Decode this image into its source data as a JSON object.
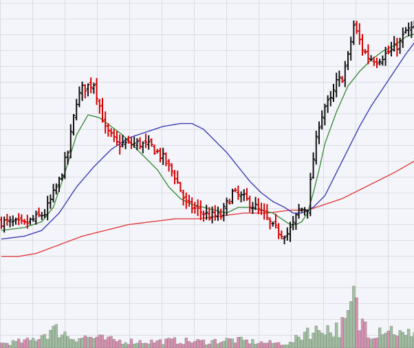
{
  "chart_data": {
    "type": "ohlc",
    "title": "",
    "xlabel": "",
    "ylabel": "",
    "grid": true,
    "legend": "none",
    "ylim": [
      0,
      100
    ],
    "volume_ylim": [
      0,
      100
    ],
    "colors": {
      "background": "#f4f5fa",
      "grid": "#d4d5dc",
      "up_bar": "#111111",
      "down_bar": "#d40000",
      "ma_fast": "#3c8c3c",
      "ma_mid": "#3c3cb4",
      "ma_slow": "#e03c3c",
      "volume_up": "#9fbf9f",
      "volume_down": "#d98fb0",
      "volume_edge": "#7a7a7a"
    },
    "anchors": {
      "close": [
        [
          0,
          28
        ],
        [
          8,
          27
        ],
        [
          15,
          31
        ],
        [
          20,
          42
        ],
        [
          23,
          52
        ],
        [
          26,
          70
        ],
        [
          28,
          74
        ],
        [
          32,
          76
        ],
        [
          36,
          60
        ],
        [
          40,
          55
        ],
        [
          44,
          55
        ],
        [
          48,
          55
        ],
        [
          52,
          54
        ],
        [
          56,
          50
        ],
        [
          60,
          44
        ],
        [
          64,
          34
        ],
        [
          68,
          32
        ],
        [
          72,
          30
        ],
        [
          76,
          30
        ],
        [
          80,
          38
        ],
        [
          84,
          36
        ],
        [
          88,
          33
        ],
        [
          91,
          30
        ],
        [
          94,
          26
        ],
        [
          97,
          24
        ],
        [
          99,
          24
        ],
        [
          101,
          27
        ],
        [
          103,
          32
        ],
        [
          106,
          33
        ],
        [
          108,
          50
        ],
        [
          110,
          62
        ],
        [
          112,
          68
        ],
        [
          114,
          70
        ],
        [
          116,
          76
        ],
        [
          118,
          78
        ],
        [
          120,
          85
        ],
        [
          122,
          96
        ],
        [
          125,
          88
        ],
        [
          127,
          85
        ],
        [
          130,
          84
        ],
        [
          133,
          86
        ],
        [
          136,
          88
        ],
        [
          138,
          90
        ],
        [
          140,
          94
        ],
        [
          143,
          95
        ]
      ],
      "sma_fast": [
        [
          0,
          25
        ],
        [
          8,
          26
        ],
        [
          14,
          28
        ],
        [
          18,
          33
        ],
        [
          22,
          45
        ],
        [
          26,
          58
        ],
        [
          30,
          65
        ],
        [
          34,
          64
        ],
        [
          38,
          61
        ],
        [
          42,
          58
        ],
        [
          46,
          54
        ],
        [
          50,
          50
        ],
        [
          54,
          46
        ],
        [
          58,
          40
        ],
        [
          62,
          36
        ],
        [
          66,
          34
        ],
        [
          70,
          33
        ],
        [
          74,
          32
        ],
        [
          78,
          31
        ],
        [
          82,
          33
        ],
        [
          86,
          33
        ],
        [
          90,
          32
        ],
        [
          94,
          31
        ],
        [
          97,
          29
        ],
        [
          100,
          27
        ],
        [
          102,
          27
        ],
        [
          104,
          28
        ],
        [
          106,
          31
        ],
        [
          108,
          38
        ],
        [
          110,
          46
        ],
        [
          112,
          55
        ],
        [
          116,
          66
        ],
        [
          120,
          75
        ],
        [
          124,
          80
        ],
        [
          128,
          84
        ],
        [
          132,
          87
        ],
        [
          136,
          89
        ],
        [
          140,
          92
        ],
        [
          143,
          93
        ]
      ],
      "sma_mid": [
        [
          0,
          22
        ],
        [
          8,
          23
        ],
        [
          14,
          25
        ],
        [
          20,
          31
        ],
        [
          26,
          40
        ],
        [
          32,
          47
        ],
        [
          38,
          53
        ],
        [
          44,
          57
        ],
        [
          50,
          59
        ],
        [
          56,
          61
        ],
        [
          62,
          62
        ],
        [
          66,
          62
        ],
        [
          70,
          60
        ],
        [
          74,
          56
        ],
        [
          78,
          52
        ],
        [
          82,
          47
        ],
        [
          86,
          42
        ],
        [
          90,
          38
        ],
        [
          94,
          35
        ],
        [
          98,
          33
        ],
        [
          101,
          31
        ],
        [
          104,
          31
        ],
        [
          108,
          33
        ],
        [
          112,
          37
        ],
        [
          116,
          45
        ],
        [
          120,
          53
        ],
        [
          124,
          61
        ],
        [
          128,
          68
        ],
        [
          132,
          74
        ],
        [
          136,
          80
        ],
        [
          140,
          86
        ],
        [
          143,
          90
        ]
      ],
      "sma_slow": [
        [
          0,
          16
        ],
        [
          6,
          16
        ],
        [
          12,
          17
        ],
        [
          20,
          20
        ],
        [
          28,
          23
        ],
        [
          36,
          25
        ],
        [
          44,
          27
        ],
        [
          52,
          28
        ],
        [
          60,
          29
        ],
        [
          68,
          29
        ],
        [
          76,
          30
        ],
        [
          84,
          31
        ],
        [
          92,
          31
        ],
        [
          100,
          32
        ],
        [
          106,
          32
        ],
        [
          112,
          34
        ],
        [
          118,
          36
        ],
        [
          124,
          39
        ],
        [
          130,
          42
        ],
        [
          136,
          45
        ],
        [
          143,
          49
        ]
      ]
    },
    "volume_anchors": [
      [
        0,
        5
      ],
      [
        10,
        8
      ],
      [
        16,
        18
      ],
      [
        20,
        20
      ],
      [
        24,
        12
      ],
      [
        30,
        12
      ],
      [
        40,
        8
      ],
      [
        50,
        7
      ],
      [
        60,
        8
      ],
      [
        70,
        7
      ],
      [
        80,
        9
      ],
      [
        90,
        6
      ],
      [
        100,
        5
      ],
      [
        104,
        14
      ],
      [
        106,
        22
      ],
      [
        108,
        16
      ],
      [
        112,
        26
      ],
      [
        114,
        18
      ],
      [
        118,
        24
      ],
      [
        120,
        30
      ],
      [
        122,
        58
      ],
      [
        124,
        25
      ],
      [
        126,
        30
      ],
      [
        128,
        16
      ],
      [
        132,
        24
      ],
      [
        136,
        20
      ],
      [
        140,
        12
      ],
      [
        143,
        22
      ]
    ]
  }
}
